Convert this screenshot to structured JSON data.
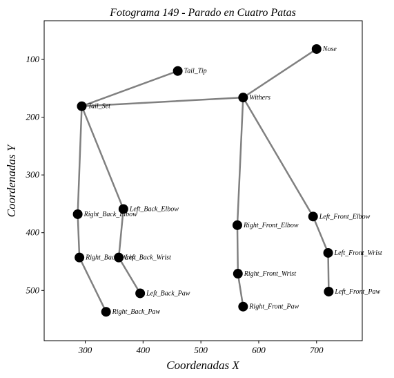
{
  "chart_data": {
    "type": "scatter",
    "title": "Fotograma 149 - Parado en Cuatro Patas",
    "xlabel": "Coordenadas X",
    "ylabel": "Coordenadas Y",
    "xlim": [
      229,
      779
    ],
    "ylim": [
      587,
      33
    ],
    "y_inverted": true,
    "xticks": [
      300,
      400,
      500,
      600,
      700
    ],
    "yticks": [
      100,
      200,
      300,
      400,
      500
    ],
    "grid": false,
    "colors": {
      "joint": "#000000",
      "bone": "#808080"
    },
    "keypoints": [
      {
        "name": "Nose",
        "x": 700,
        "y": 82
      },
      {
        "name": "Withers",
        "x": 573,
        "y": 166
      },
      {
        "name": "Tail_Tip",
        "x": 460,
        "y": 120
      },
      {
        "name": "Tail_Set",
        "x": 294,
        "y": 181
      },
      {
        "name": "Right_Back_Elbow",
        "x": 287,
        "y": 368
      },
      {
        "name": "Left_Back_Elbow",
        "x": 366,
        "y": 359
      },
      {
        "name": "Right_Back_Wrist",
        "x": 290,
        "y": 443
      },
      {
        "name": "Left_Back_Wrist",
        "x": 358,
        "y": 443
      },
      {
        "name": "Left_Back_Paw",
        "x": 395,
        "y": 505
      },
      {
        "name": "Right_Back_Paw",
        "x": 336,
        "y": 537
      },
      {
        "name": "Right_Front_Elbow",
        "x": 563,
        "y": 387
      },
      {
        "name": "Right_Front_Wrist",
        "x": 564,
        "y": 471
      },
      {
        "name": "Right_Front_Paw",
        "x": 573,
        "y": 528
      },
      {
        "name": "Left_Front_Elbow",
        "x": 694,
        "y": 372
      },
      {
        "name": "Left_Front_Wrist",
        "x": 720,
        "y": 435
      },
      {
        "name": "Left_Front_Paw",
        "x": 721,
        "y": 502
      }
    ],
    "connections": [
      [
        "Nose",
        "Withers"
      ],
      [
        "Withers",
        "Tail_Set"
      ],
      [
        "Tail_Set",
        "Tail_Tip"
      ],
      [
        "Tail_Set",
        "Right_Back_Elbow"
      ],
      [
        "Right_Back_Elbow",
        "Right_Back_Wrist"
      ],
      [
        "Right_Back_Wrist",
        "Right_Back_Paw"
      ],
      [
        "Tail_Set",
        "Left_Back_Elbow"
      ],
      [
        "Left_Back_Elbow",
        "Left_Back_Wrist"
      ],
      [
        "Left_Back_Wrist",
        "Left_Back_Paw"
      ],
      [
        "Withers",
        "Right_Front_Elbow"
      ],
      [
        "Right_Front_Elbow",
        "Right_Front_Wrist"
      ],
      [
        "Right_Front_Wrist",
        "Right_Front_Paw"
      ],
      [
        "Withers",
        "Left_Front_Elbow"
      ],
      [
        "Left_Front_Elbow",
        "Left_Front_Wrist"
      ],
      [
        "Left_Front_Wrist",
        "Left_Front_Paw"
      ]
    ]
  }
}
